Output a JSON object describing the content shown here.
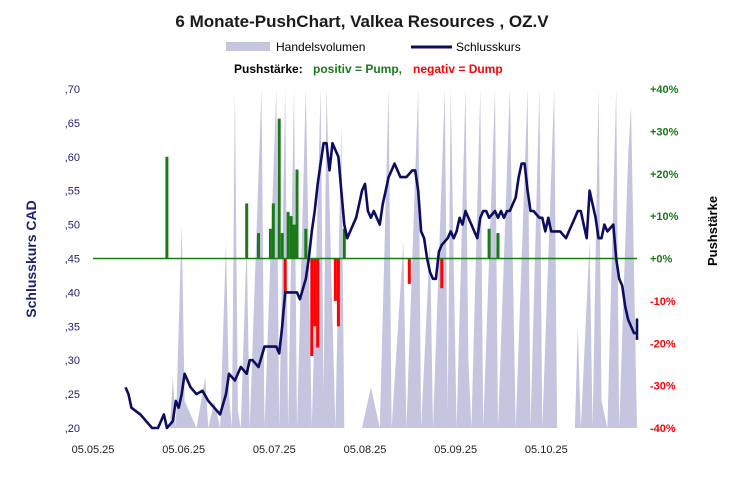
{
  "title": "6 Monate-PushChart,  Valkea Resources , OZ.V",
  "legend": {
    "volume_label": "Handelsvolumen",
    "close_label": "Schlusskurs"
  },
  "subtitle": {
    "prefix": "Pushstärke:",
    "positive": "positiv = Pump,",
    "negative": "negativ = Dump"
  },
  "colors": {
    "volume": "#c5c5df",
    "close": "#0d0d5f",
    "positive": "#1a7a1a",
    "negative": "#ff0000",
    "zero_line": "#1a7a1a",
    "left_axis_text": "#1e1f6e",
    "right_axis_text": "#1a7a1a"
  },
  "chart_data": {
    "type": "line",
    "ylabel": "Schlusskurs CAD",
    "y2label": "Pushstärke",
    "ylim": [
      0.2,
      0.7
    ],
    "y2lim": [
      -40,
      40
    ],
    "x_range": [
      "2025-05-05",
      "2025-11-03"
    ],
    "x_tick_labels": [
      "05.05.25",
      "05.06.25",
      "05.07.25",
      "05.08.25",
      "05.09.25",
      "05.10.25"
    ],
    "y_tick_labels": [
      ",20",
      ",25",
      ",30",
      ",35",
      ",40",
      ",45",
      ",50",
      ",55",
      ",60",
      ",65",
      ",70"
    ],
    "y2_tick_labels": [
      "-40%",
      "-30%",
      "-20%",
      "-10%",
      "+0%",
      "+10%",
      "+20%",
      "+30%",
      "+40%"
    ],
    "series": [
      {
        "name": "Schlusskurs",
        "points": [
          [
            "2025-05-16",
            0.26
          ],
          [
            "2025-05-17",
            0.25
          ],
          [
            "2025-05-18",
            0.23
          ],
          [
            "2025-05-21",
            0.22
          ],
          [
            "2025-05-23",
            0.21
          ],
          [
            "2025-05-25",
            0.2
          ],
          [
            "2025-05-27",
            0.2
          ],
          [
            "2025-05-29",
            0.22
          ],
          [
            "2025-05-30",
            0.2
          ],
          [
            "2025-06-01",
            0.21
          ],
          [
            "2025-06-02",
            0.24
          ],
          [
            "2025-06-03",
            0.23
          ],
          [
            "2025-06-04",
            0.25
          ],
          [
            "2025-06-05",
            0.28
          ],
          [
            "2025-06-07",
            0.26
          ],
          [
            "2025-06-09",
            0.25
          ],
          [
            "2025-06-11",
            0.255
          ],
          [
            "2025-06-13",
            0.24
          ],
          [
            "2025-06-15",
            0.23
          ],
          [
            "2025-06-17",
            0.22
          ],
          [
            "2025-06-19",
            0.25
          ],
          [
            "2025-06-20",
            0.28
          ],
          [
            "2025-06-22",
            0.27
          ],
          [
            "2025-06-24",
            0.29
          ],
          [
            "2025-06-26",
            0.28
          ],
          [
            "2025-06-27",
            0.3
          ],
          [
            "2025-06-28",
            0.3
          ],
          [
            "2025-06-30",
            0.29
          ],
          [
            "2025-07-02",
            0.32
          ],
          [
            "2025-07-04",
            0.32
          ],
          [
            "2025-07-06",
            0.32
          ],
          [
            "2025-07-07",
            0.31
          ],
          [
            "2025-07-08",
            0.35
          ],
          [
            "2025-07-09",
            0.4
          ],
          [
            "2025-07-11",
            0.4
          ],
          [
            "2025-07-13",
            0.4
          ],
          [
            "2025-07-14",
            0.39
          ],
          [
            "2025-07-16",
            0.42
          ],
          [
            "2025-07-17",
            0.45
          ],
          [
            "2025-07-18",
            0.49
          ],
          [
            "2025-07-19",
            0.52
          ],
          [
            "2025-07-20",
            0.56
          ],
          [
            "2025-07-21",
            0.59
          ],
          [
            "2025-07-22",
            0.62
          ],
          [
            "2025-07-23",
            0.62
          ],
          [
            "2025-07-24",
            0.58
          ],
          [
            "2025-07-25",
            0.62
          ],
          [
            "2025-07-26",
            0.61
          ],
          [
            "2025-07-27",
            0.6
          ],
          [
            "2025-07-28",
            0.55
          ],
          [
            "2025-07-29",
            0.5
          ],
          [
            "2025-07-30",
            0.48
          ],
          [
            "2025-07-31",
            0.49
          ],
          [
            "2025-08-01",
            0.5
          ],
          [
            "2025-08-02",
            0.51
          ],
          [
            "2025-08-03",
            0.53
          ],
          [
            "2025-08-04",
            0.55
          ],
          [
            "2025-08-05",
            0.56
          ],
          [
            "2025-08-06",
            0.52
          ],
          [
            "2025-08-07",
            0.51
          ],
          [
            "2025-08-08",
            0.52
          ],
          [
            "2025-08-09",
            0.51
          ],
          [
            "2025-08-10",
            0.5
          ],
          [
            "2025-08-11",
            0.53
          ],
          [
            "2025-08-12",
            0.55
          ],
          [
            "2025-08-13",
            0.57
          ],
          [
            "2025-08-14",
            0.58
          ],
          [
            "2025-08-15",
            0.59
          ],
          [
            "2025-08-16",
            0.58
          ],
          [
            "2025-08-17",
            0.57
          ],
          [
            "2025-08-19",
            0.57
          ],
          [
            "2025-08-21",
            0.58
          ],
          [
            "2025-08-22",
            0.58
          ],
          [
            "2025-08-23",
            0.55
          ],
          [
            "2025-08-24",
            0.49
          ],
          [
            "2025-08-25",
            0.48
          ],
          [
            "2025-08-26",
            0.45
          ],
          [
            "2025-08-27",
            0.43
          ],
          [
            "2025-08-28",
            0.42
          ],
          [
            "2025-08-29",
            0.42
          ],
          [
            "2025-08-30",
            0.46
          ],
          [
            "2025-08-31",
            0.47
          ],
          [
            "2025-09-02",
            0.48
          ],
          [
            "2025-09-03",
            0.49
          ],
          [
            "2025-09-04",
            0.48
          ],
          [
            "2025-09-05",
            0.49
          ],
          [
            "2025-09-06",
            0.51
          ],
          [
            "2025-09-07",
            0.5
          ],
          [
            "2025-09-08",
            0.52
          ],
          [
            "2025-09-09",
            0.51
          ],
          [
            "2025-09-10",
            0.5
          ],
          [
            "2025-09-11",
            0.49
          ],
          [
            "2025-09-12",
            0.48
          ],
          [
            "2025-09-13",
            0.51
          ],
          [
            "2025-09-14",
            0.52
          ],
          [
            "2025-09-15",
            0.52
          ],
          [
            "2025-09-16",
            0.51
          ],
          [
            "2025-09-18",
            0.52
          ],
          [
            "2025-09-19",
            0.51
          ],
          [
            "2025-09-20",
            0.52
          ],
          [
            "2025-09-21",
            0.51
          ],
          [
            "2025-09-22",
            0.52
          ],
          [
            "2025-09-23",
            0.52
          ],
          [
            "2025-09-25",
            0.54
          ],
          [
            "2025-09-26",
            0.57
          ],
          [
            "2025-09-27",
            0.59
          ],
          [
            "2025-09-28",
            0.59
          ],
          [
            "2025-09-29",
            0.55
          ],
          [
            "2025-09-30",
            0.52
          ],
          [
            "2025-10-01",
            0.52
          ],
          [
            "2025-10-03",
            0.51
          ],
          [
            "2025-10-04",
            0.51
          ],
          [
            "2025-10-05",
            0.49
          ],
          [
            "2025-10-06",
            0.51
          ],
          [
            "2025-10-07",
            0.49
          ],
          [
            "2025-10-08",
            0.49
          ],
          [
            "2025-10-10",
            0.49
          ],
          [
            "2025-10-12",
            0.48
          ],
          [
            "2025-10-13",
            0.49
          ],
          [
            "2025-10-14",
            0.5
          ],
          [
            "2025-10-15",
            0.51
          ],
          [
            "2025-10-16",
            0.52
          ],
          [
            "2025-10-17",
            0.52
          ],
          [
            "2025-10-18",
            0.5
          ],
          [
            "2025-10-19",
            0.48
          ],
          [
            "2025-10-20",
            0.55
          ],
          [
            "2025-10-21",
            0.53
          ],
          [
            "2025-10-22",
            0.51
          ],
          [
            "2025-10-23",
            0.48
          ],
          [
            "2025-10-24",
            0.48
          ],
          [
            "2025-10-25",
            0.5
          ],
          [
            "2025-10-26",
            0.49
          ],
          [
            "2025-10-28",
            0.5
          ],
          [
            "2025-10-29",
            0.45
          ],
          [
            "2025-10-30",
            0.42
          ],
          [
            "2025-10-31",
            0.41
          ],
          [
            "2025-11-01",
            0.38
          ],
          [
            "2025-11-02",
            0.36
          ],
          [
            "2025-11-04",
            0.34
          ],
          [
            "2025-11-05",
            0.34
          ],
          [
            "2025-11-06",
            0.36
          ],
          [
            "2025-11-08",
            0.33
          ]
        ]
      },
      {
        "name": "Handelsvolumen",
        "note_relative_scale": "0-100",
        "points": [
          [
            "2025-05-17",
            0
          ],
          [
            "2025-05-31",
            0
          ],
          [
            "2025-06-01",
            15
          ],
          [
            "2025-06-02",
            0
          ],
          [
            "2025-06-04",
            60
          ],
          [
            "2025-06-05",
            8
          ],
          [
            "2025-06-09",
            0
          ],
          [
            "2025-06-12",
            15
          ],
          [
            "2025-06-13",
            0
          ],
          [
            "2025-06-15",
            8
          ],
          [
            "2025-06-17",
            0
          ],
          [
            "2025-06-19",
            55
          ],
          [
            "2025-06-20",
            10
          ],
          [
            "2025-06-21",
            0
          ],
          [
            "2025-06-22",
            100
          ],
          [
            "2025-06-23",
            5
          ],
          [
            "2025-06-24",
            0
          ],
          [
            "2025-06-26",
            55
          ],
          [
            "2025-06-27",
            0
          ],
          [
            "2025-07-01",
            100
          ],
          [
            "2025-07-02",
            0
          ],
          [
            "2025-07-06",
            100
          ],
          [
            "2025-07-07",
            0
          ],
          [
            "2025-07-09",
            100
          ],
          [
            "2025-07-10",
            0
          ],
          [
            "2025-07-12",
            100
          ],
          [
            "2025-07-13",
            0
          ],
          [
            "2025-07-16",
            100
          ],
          [
            "2025-07-18",
            0
          ],
          [
            "2025-07-21",
            100
          ],
          [
            "2025-07-22",
            10
          ],
          [
            "2025-07-23",
            100
          ],
          [
            "2025-07-26",
            0
          ],
          [
            "2025-07-28",
            90
          ],
          [
            "2025-07-29",
            0
          ],
          [
            "2025-07-31",
            0
          ],
          [
            "2025-08-04",
            0
          ],
          [
            "2025-08-07",
            12
          ],
          [
            "2025-08-10",
            0
          ],
          [
            "2025-08-13",
            100
          ],
          [
            "2025-08-14",
            0
          ],
          [
            "2025-08-18",
            55
          ],
          [
            "2025-08-19",
            0
          ],
          [
            "2025-08-23",
            100
          ],
          [
            "2025-08-24",
            0
          ],
          [
            "2025-08-27",
            55
          ],
          [
            "2025-08-28",
            0
          ],
          [
            "2025-09-01",
            100
          ],
          [
            "2025-09-02",
            5
          ],
          [
            "2025-09-03",
            100
          ],
          [
            "2025-09-05",
            0
          ],
          [
            "2025-09-08",
            100
          ],
          [
            "2025-09-09",
            20
          ],
          [
            "2025-09-10",
            0
          ],
          [
            "2025-09-13",
            100
          ],
          [
            "2025-09-14",
            0
          ],
          [
            "2025-09-18",
            100
          ],
          [
            "2025-09-19",
            0
          ],
          [
            "2025-09-23",
            100
          ],
          [
            "2025-09-25",
            0
          ],
          [
            "2025-09-29",
            100
          ],
          [
            "2025-09-30",
            0
          ],
          [
            "2025-10-03",
            100
          ],
          [
            "2025-10-04",
            0
          ],
          [
            "2025-10-08",
            100
          ],
          [
            "2025-10-09",
            0
          ],
          [
            "2025-10-12",
            0
          ],
          [
            "2025-10-15",
            0
          ],
          [
            "2025-10-16",
            30
          ],
          [
            "2025-10-17",
            0
          ],
          [
            "2025-10-20",
            55
          ],
          [
            "2025-10-21",
            0
          ],
          [
            "2025-10-23",
            100
          ],
          [
            "2025-10-24",
            8
          ],
          [
            "2025-10-26",
            0
          ],
          [
            "2025-10-29",
            100
          ],
          [
            "2025-10-30",
            0
          ],
          [
            "2025-11-02",
            80
          ],
          [
            "2025-11-03",
            95
          ],
          [
            "2025-11-05",
            0
          ],
          [
            "2025-11-07",
            45
          ],
          [
            "2025-11-08",
            0
          ]
        ]
      }
    ],
    "push_bars": [
      [
        "2025-05-30",
        24
      ],
      [
        "2025-06-26",
        13
      ],
      [
        "2025-06-30",
        6
      ],
      [
        "2025-07-04",
        7
      ],
      [
        "2025-07-05",
        13
      ],
      [
        "2025-07-07",
        33
      ],
      [
        "2025-07-08",
        6
      ],
      [
        "2025-07-10",
        11
      ],
      [
        "2025-07-11",
        10
      ],
      [
        "2025-07-12",
        8
      ],
      [
        "2025-07-13",
        21
      ],
      [
        "2025-07-16",
        7
      ],
      [
        "2025-07-09",
        -8
      ],
      [
        "2025-07-18",
        -23
      ],
      [
        "2025-07-19",
        -16
      ],
      [
        "2025-07-20",
        -21
      ],
      [
        "2025-07-26",
        -10
      ],
      [
        "2025-07-27",
        -16
      ],
      [
        "2025-07-29",
        7
      ],
      [
        "2025-08-20",
        -6
      ],
      [
        "2025-08-31",
        -7
      ],
      [
        "2025-09-16",
        7
      ],
      [
        "2025-09-19",
        6
      ]
    ]
  }
}
